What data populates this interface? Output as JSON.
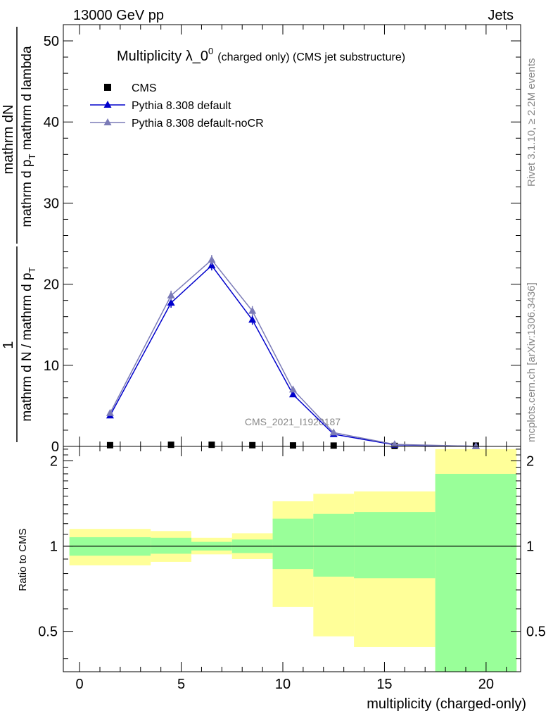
{
  "header": {
    "energy_label": "13000 GeV pp",
    "category_label": "Jets"
  },
  "side_labels": {
    "rivet": "Rivet 3.1.10, ≥ 2.2M events",
    "mcplots": "mcplots.cern.ch [arXiv:1306.3436]"
  },
  "watermark": "CMS_2021_I1920187",
  "chart_data": [
    {
      "type": "line",
      "title_main": "Multiplicity λ_0",
      "title_sup": "0",
      "title_extra": "(charged only) (CMS jet substructure)",
      "ylabel_numerator": "mathrm dN",
      "ylabel_den1": "mathrm d p",
      "ylabel_den1_sub": "T",
      "ylabel_den2": " mathrm d lambda",
      "ylabel_prefactor_num": "1",
      "ylabel_prefactor_den": "mathrm d N / mathrm d p",
      "ylabel_prefactor_den_sub": "T",
      "ylabel_prefactor_den2": "mathrm d p",
      "ylim": [
        0,
        52
      ],
      "yticks": [
        0,
        10,
        20,
        30,
        40,
        50
      ],
      "xlim": [
        -0.8,
        21.7
      ],
      "legend_position": "top-left",
      "series": [
        {
          "name": "CMS",
          "color": "#000000",
          "marker": "square",
          "x": [
            1.5,
            4.5,
            6.5,
            8.5,
            10.5,
            12.5,
            15.5,
            19.5
          ],
          "y": [
            0.15,
            0.2,
            0.2,
            0.15,
            0.12,
            0.1,
            0.06,
            0.1
          ]
        },
        {
          "name": "Pythia 8.308 default",
          "color": "#0000cc",
          "marker": "triangle",
          "x": [
            1.5,
            4.5,
            6.5,
            8.5,
            10.5,
            12.5,
            15.5,
            19.5
          ],
          "y": [
            3.8,
            17.7,
            22.3,
            15.6,
            6.4,
            1.5,
            0.2,
            0.01
          ],
          "err": [
            0.3,
            0.6,
            0.6,
            0.6,
            0.3,
            0.2,
            0.05,
            0.01
          ]
        },
        {
          "name": "Pythia 8.308 default-noCR",
          "color": "#7b7bb7",
          "marker": "triangle",
          "x": [
            1.5,
            4.5,
            6.5,
            8.5,
            10.5,
            12.5,
            15.5,
            19.5
          ],
          "y": [
            4.1,
            18.6,
            23.0,
            16.7,
            7.0,
            1.7,
            0.25,
            0.01
          ],
          "err": [
            0.3,
            0.6,
            0.6,
            0.6,
            0.3,
            0.2,
            0.05,
            0.01
          ]
        }
      ]
    },
    {
      "type": "area",
      "ylabel": "Ratio to CMS",
      "xlabel": "multiplicity (charged-only)",
      "ylim": [
        0.36,
        2.25
      ],
      "yticks": [
        0.5,
        1,
        2
      ],
      "xlim": [
        -0.8,
        21.7
      ],
      "xticks": [
        0,
        5,
        10,
        15,
        20
      ],
      "bins": [
        {
          "x0": -0.5,
          "x1": 3.5,
          "inner_low": 0.925,
          "inner_high": 1.075,
          "outer_low": 0.855,
          "outer_high": 1.15
        },
        {
          "x0": 3.5,
          "x1": 5.5,
          "inner_low": 0.94,
          "inner_high": 1.07,
          "outer_low": 0.88,
          "outer_high": 1.13
        },
        {
          "x0": 5.5,
          "x1": 7.5,
          "inner_low": 0.965,
          "inner_high": 1.035,
          "outer_low": 0.935,
          "outer_high": 1.07
        },
        {
          "x0": 7.5,
          "x1": 9.5,
          "inner_low": 0.945,
          "inner_high": 1.055,
          "outer_low": 0.9,
          "outer_high": 1.11
        },
        {
          "x0": 9.5,
          "x1": 11.5,
          "inner_low": 0.83,
          "inner_high": 1.25,
          "outer_low": 0.61,
          "outer_high": 1.44
        },
        {
          "x0": 11.5,
          "x1": 13.5,
          "inner_low": 0.78,
          "inner_high": 1.3,
          "outer_low": 0.48,
          "outer_high": 1.53
        },
        {
          "x0": 13.5,
          "x1": 17.5,
          "inner_low": 0.77,
          "inner_high": 1.32,
          "outer_low": 0.44,
          "outer_high": 1.56
        },
        {
          "x0": 17.5,
          "x1": 21.5,
          "inner_low": 0.36,
          "inner_high": 1.8,
          "outer_low": 0.36,
          "outer_high": 2.2
        }
      ],
      "inner_color": "#99ff99",
      "outer_color": "#ffff99"
    }
  ]
}
